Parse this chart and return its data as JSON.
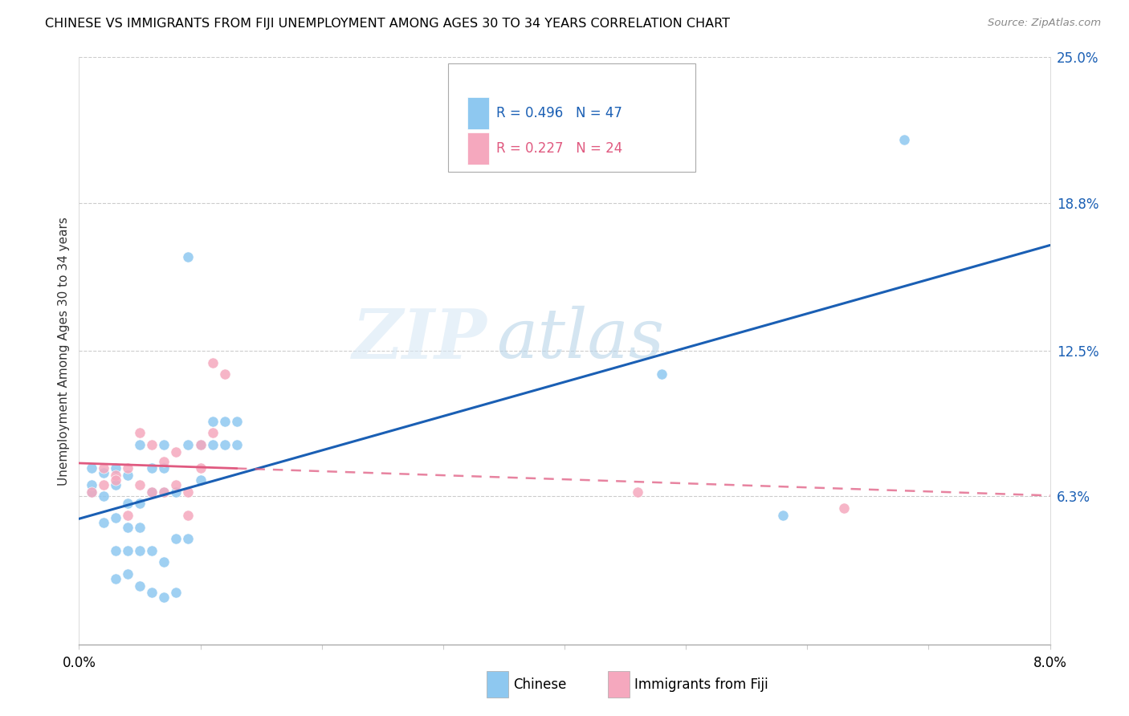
{
  "title": "CHINESE VS IMMIGRANTS FROM FIJI UNEMPLOYMENT AMONG AGES 30 TO 34 YEARS CORRELATION CHART",
  "source": "Source: ZipAtlas.com",
  "ylabel": "Unemployment Among Ages 30 to 34 years",
  "xlim": [
    0.0,
    0.08
  ],
  "ylim": [
    0.0,
    0.25
  ],
  "ytick_right_values": [
    0.0,
    0.063,
    0.125,
    0.188,
    0.25
  ],
  "ytick_right_labels": [
    "",
    "6.3%",
    "12.5%",
    "18.8%",
    "25.0%"
  ],
  "color_chinese": "#8ec8f0",
  "color_fiji": "#f5a8be",
  "color_chinese_line": "#1a5fb4",
  "color_fiji_line": "#e05a80",
  "watermark_zip": "ZIP",
  "watermark_atlas": "atlas",
  "chinese_x": [
    0.001,
    0.001,
    0.001,
    0.002,
    0.002,
    0.002,
    0.003,
    0.003,
    0.003,
    0.003,
    0.003,
    0.004,
    0.004,
    0.004,
    0.004,
    0.004,
    0.005,
    0.005,
    0.005,
    0.005,
    0.005,
    0.006,
    0.006,
    0.006,
    0.006,
    0.007,
    0.007,
    0.007,
    0.007,
    0.007,
    0.008,
    0.008,
    0.008,
    0.009,
    0.009,
    0.009,
    0.01,
    0.01,
    0.011,
    0.011,
    0.012,
    0.012,
    0.013,
    0.013,
    0.048,
    0.058,
    0.068
  ],
  "chinese_y": [
    0.065,
    0.075,
    0.068,
    0.052,
    0.073,
    0.063,
    0.054,
    0.068,
    0.075,
    0.04,
    0.028,
    0.03,
    0.05,
    0.06,
    0.072,
    0.04,
    0.025,
    0.04,
    0.05,
    0.06,
    0.085,
    0.022,
    0.04,
    0.065,
    0.075,
    0.02,
    0.035,
    0.065,
    0.075,
    0.085,
    0.022,
    0.045,
    0.065,
    0.045,
    0.085,
    0.165,
    0.07,
    0.085,
    0.085,
    0.095,
    0.085,
    0.095,
    0.085,
    0.095,
    0.115,
    0.055,
    0.215
  ],
  "fiji_x": [
    0.001,
    0.002,
    0.002,
    0.003,
    0.003,
    0.004,
    0.004,
    0.005,
    0.005,
    0.006,
    0.006,
    0.007,
    0.007,
    0.008,
    0.008,
    0.009,
    0.009,
    0.01,
    0.01,
    0.011,
    0.011,
    0.012,
    0.046,
    0.063
  ],
  "fiji_y": [
    0.065,
    0.075,
    0.068,
    0.072,
    0.07,
    0.075,
    0.055,
    0.068,
    0.09,
    0.065,
    0.085,
    0.065,
    0.078,
    0.068,
    0.082,
    0.065,
    0.055,
    0.075,
    0.085,
    0.09,
    0.12,
    0.115,
    0.065,
    0.058
  ]
}
